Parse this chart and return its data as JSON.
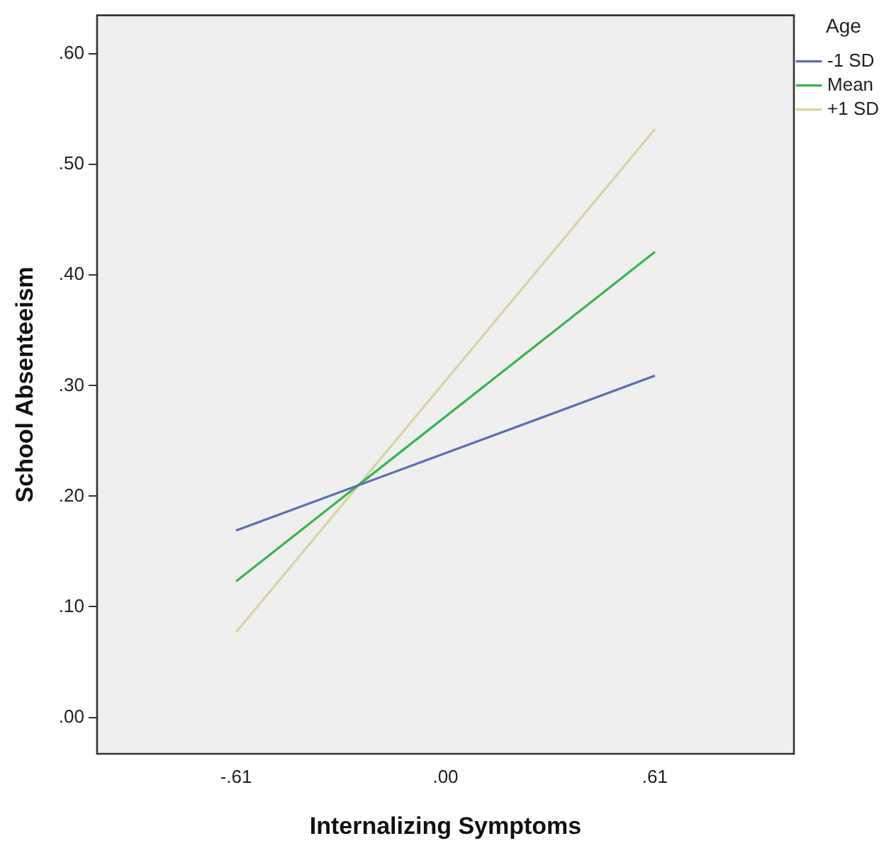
{
  "chart_data": {
    "type": "line",
    "xlabel": "Internalizing Symptoms",
    "ylabel": "School Absenteeism",
    "legend_title": "Age",
    "x": [
      -0.61,
      0.61
    ],
    "series": [
      {
        "name": "-1 SD",
        "color": "#5b6db5",
        "values": [
          0.169,
          0.309
        ]
      },
      {
        "name": "Mean",
        "color": "#3ab54a",
        "values": [
          0.123,
          0.421
        ]
      },
      {
        "name": "+1 SD",
        "color": "#d8d2a0",
        "values": [
          0.077,
          0.532
        ]
      }
    ],
    "xlim": [
      -1.015,
      1.015
    ],
    "xticks": [
      {
        "value": -0.61,
        "label": "-.61"
      },
      {
        "value": 0,
        "label": ".00"
      },
      {
        "value": 0.61,
        "label": ".61"
      }
    ],
    "ylim": [
      -0.033,
      0.635
    ],
    "yticks": [
      {
        "value": 0,
        "label": ".00"
      },
      {
        "value": 0.1,
        "label": ".10"
      },
      {
        "value": 0.2,
        "label": ".20"
      },
      {
        "value": 0.3,
        "label": ".30"
      },
      {
        "value": 0.4,
        "label": ".40"
      },
      {
        "value": 0.5,
        "label": ".50"
      },
      {
        "value": 0.6,
        "label": ".60"
      }
    ],
    "grid": false,
    "legend": "top right",
    "marker": "none",
    "line_style": "solid"
  }
}
